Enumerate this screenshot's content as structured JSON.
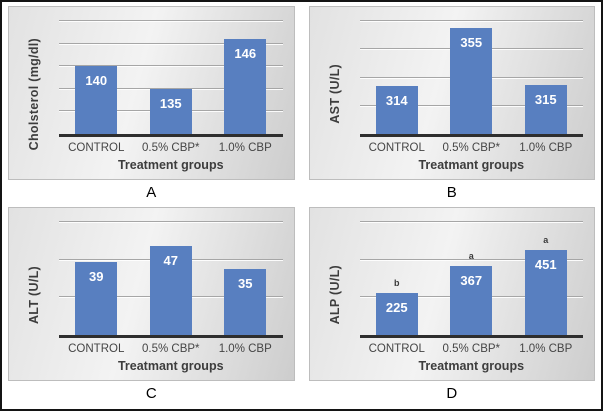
{
  "panel_labels": [
    "A",
    "B",
    "C",
    "D"
  ],
  "colors": {
    "bar": "#587fc0",
    "axis": "#2e2e2e",
    "gridline": "#a6a6a6",
    "text": "#3d3d3d"
  },
  "chart_data": [
    {
      "type": "bar",
      "panel": "A",
      "title": "",
      "ylabel": "Cholsterol (mg/dl)",
      "xlabel": "Treatment groups",
      "categories": [
        "CONTROL",
        "0.5% CBP*",
        "1.0% CBP"
      ],
      "values": [
        140,
        135,
        146
      ],
      "ylim": [
        125,
        150
      ],
      "gridstep": 5,
      "grid": true,
      "annotations": [
        "",
        "",
        ""
      ]
    },
    {
      "type": "bar",
      "panel": "B",
      "title": "",
      "ylabel": "AST (U/L)",
      "xlabel": "Treatmant groups",
      "categories": [
        "CONTROL",
        "0.5% CBP*",
        "1.0% CBP"
      ],
      "values": [
        314,
        355,
        315
      ],
      "ylim": [
        280,
        360
      ],
      "gridstep": 20,
      "grid": true,
      "annotations": [
        "",
        "",
        ""
      ]
    },
    {
      "type": "bar",
      "panel": "C",
      "title": "",
      "ylabel": "ALT (U/L)",
      "xlabel": "Treatmant groups",
      "categories": [
        "CONTROL",
        "0.5% CBP*",
        "1.0% CBP"
      ],
      "values": [
        39,
        47,
        35
      ],
      "ylim": [
        0,
        60
      ],
      "gridstep": 20,
      "grid": true,
      "annotations": [
        "",
        "",
        ""
      ]
    },
    {
      "type": "bar",
      "panel": "D",
      "title": "",
      "ylabel": "ALP (U/L)",
      "xlabel": "Treatmant groups",
      "categories": [
        "CONTROL",
        "0.5% CBP*",
        "1.0% CBP"
      ],
      "values": [
        225,
        367,
        451
      ],
      "ylim": [
        0,
        600
      ],
      "gridstep": 200,
      "grid": true,
      "annotations": [
        "b",
        "a",
        "a"
      ]
    }
  ]
}
